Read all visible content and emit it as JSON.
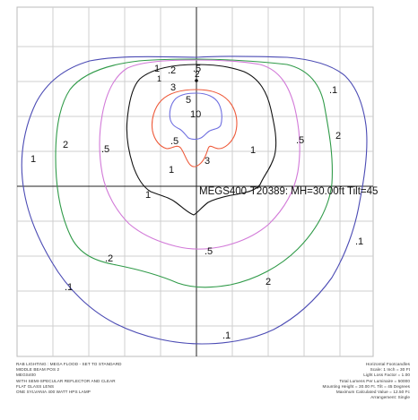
{
  "diagram": {
    "plot_title": "MEGS400-T20389: MH=30.00ft Tilt=45",
    "center_marker": "2",
    "contour_labels": {
      "blue_outer_top": ".1",
      "blue_outer_left": "1",
      "blue_outer_right": ".1",
      "blue_outer_bottom_left": ".1",
      "blue_outer_bottom": ".1",
      "green_top": ".2",
      "green_left": "2",
      "green_right": "2",
      "green_bottom_left": ".2",
      "green_bottom": "2",
      "magenta_top": ".5",
      "magenta_left": ".5",
      "magenta_right": ".5",
      "magenta_bottom": ".5",
      "black_top": "1",
      "black_top_small": "1",
      "black_left": "1",
      "black_right": "1",
      "black_bottom": "1",
      "red_top": "3",
      "red_left": ".5",
      "red_bottom": "3",
      "blue_inner_top": "5",
      "blue_inner_center": "10"
    },
    "colors": {
      "blue_outer": "#4b4bb4",
      "green": "#2f9a48",
      "magenta": "#d27ad8",
      "black": "#111111",
      "red": "#ee5a3a",
      "blue_inner": "#6e6ee0",
      "grid": "#cfcfcf"
    }
  },
  "info_left": [
    "RAB LIGHTING : MEGA FLOOD - SET TO STANDARD",
    "MIDDLE BEAM POS 2",
    "MEGS400",
    "WITH SEMI-SPECULAR REFLECTOR AND CLEAR",
    "FLAT GLASS LENS",
    "ONE SYLVANIA 400 WATT HPS LAMP"
  ],
  "info_right": [
    "Horizontal Footcandles",
    "Scale: 1 Inch = 30 Ft",
    "Light Loss Factor = 1.00",
    "Total Lumens Per Luminaire = 50000",
    "Mounting Height = 30.00 Ft. Tilt = 45 Degrees",
    "Maximum Calculated Value = 12.50 Fc",
    "Arrangement: Single"
  ]
}
